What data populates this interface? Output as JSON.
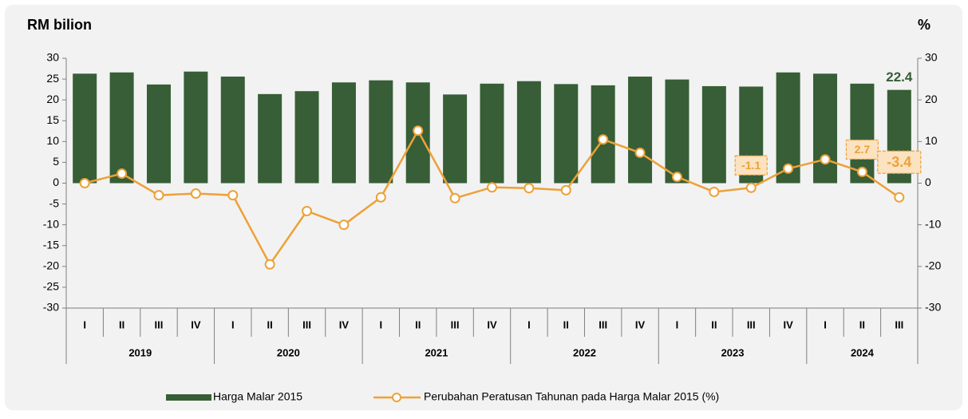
{
  "chart_data": {
    "type": "bar_line",
    "y_axis_label": "RM bilion",
    "y2_axis_label": "%",
    "categories": [
      "I",
      "II",
      "III",
      "IV",
      "I",
      "II",
      "III",
      "IV",
      "I",
      "II",
      "III",
      "IV",
      "I",
      "II",
      "III",
      "IV",
      "I",
      "II",
      "III",
      "IV",
      "I",
      "II",
      "III"
    ],
    "year_groups": [
      {
        "label": "2019",
        "count": 4
      },
      {
        "label": "2020",
        "count": 4
      },
      {
        "label": "2021",
        "count": 4
      },
      {
        "label": "2022",
        "count": 4
      },
      {
        "label": "2023",
        "count": 4
      },
      {
        "label": "2024",
        "count": 3
      }
    ],
    "series": [
      {
        "name": "Harga Malar 2015",
        "type": "bar",
        "color": "#375e36",
        "values": [
          26.3,
          26.6,
          23.7,
          26.8,
          25.6,
          21.4,
          22.1,
          24.2,
          24.7,
          24.2,
          21.3,
          23.9,
          24.5,
          23.8,
          23.5,
          25.6,
          24.9,
          23.3,
          23.2,
          26.6,
          26.3,
          23.9,
          22.4
        ],
        "labeled": [
          22
        ]
      },
      {
        "name": "Perubahan Peratusan Tahunan pada Harga Malar 2015 (%)",
        "type": "line",
        "axis": "y2",
        "color": "#eda137",
        "values": [
          0.0,
          2.3,
          -2.9,
          -2.5,
          -2.9,
          -19.5,
          -6.7,
          -10.0,
          -3.4,
          12.6,
          -3.6,
          -1.0,
          -1.2,
          -1.7,
          10.5,
          7.3,
          1.5,
          -2.1,
          -1.1,
          3.5,
          5.7,
          2.7,
          -3.4
        ],
        "labeled": [
          18,
          21,
          22
        ]
      }
    ],
    "ylim": [
      -30,
      30
    ],
    "yticks": [
      30,
      25,
      20,
      15,
      10,
      5,
      0,
      -5,
      -10,
      -15,
      -20,
      -25,
      -30
    ],
    "y2lim": [
      -30,
      30
    ],
    "y2ticks": [
      30,
      20,
      10,
      0,
      -10,
      -20,
      -30
    ],
    "legend": "bottom"
  }
}
